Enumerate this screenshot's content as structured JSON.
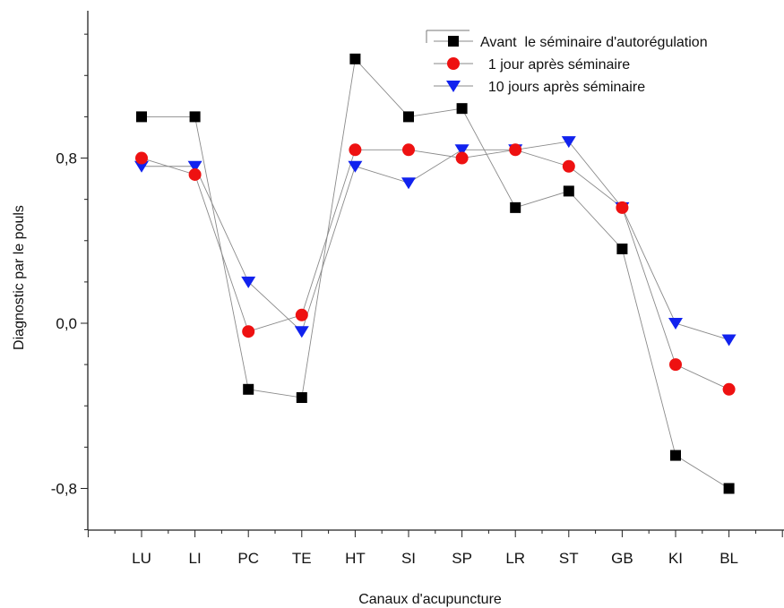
{
  "chart_data": {
    "type": "line",
    "title": "",
    "xlabel": "Canaux d'acupuncture",
    "ylabel": "Diagnostic par le pouls",
    "categories": [
      "LU",
      "LI",
      "PC",
      "TE",
      "HT",
      "SI",
      "SP",
      "LR",
      "ST",
      "GB",
      "KI",
      "BL"
    ],
    "ylim": [
      -1.0,
      1.46
    ],
    "yticks": [
      -0.8,
      0.0,
      0.8
    ],
    "ytick_labels": [
      "-0,8",
      "0,0",
      "0,8"
    ],
    "grid": false,
    "legend_position": "top-right",
    "series": [
      {
        "name": "Avant  le séminaire d'autorégulation",
        "marker": "square",
        "color": "#000000",
        "values": [
          1.0,
          1.0,
          -0.32,
          -0.36,
          1.28,
          1.0,
          1.04,
          0.56,
          0.64,
          0.36,
          -0.64,
          -0.8
        ]
      },
      {
        "name": "  1 jour après séminaire",
        "marker": "circle",
        "color": "#ee1111",
        "values": [
          0.8,
          0.72,
          -0.04,
          0.04,
          0.84,
          0.84,
          0.8,
          0.84,
          0.76,
          0.56,
          -0.2,
          -0.32
        ]
      },
      {
        "name": "  10 jours après séminaire",
        "marker": "triangle-down",
        "color": "#1122ee",
        "values": [
          0.76,
          0.76,
          0.2,
          -0.04,
          0.76,
          0.68,
          0.84,
          0.84,
          0.88,
          0.56,
          0.0,
          -0.08
        ]
      }
    ]
  }
}
